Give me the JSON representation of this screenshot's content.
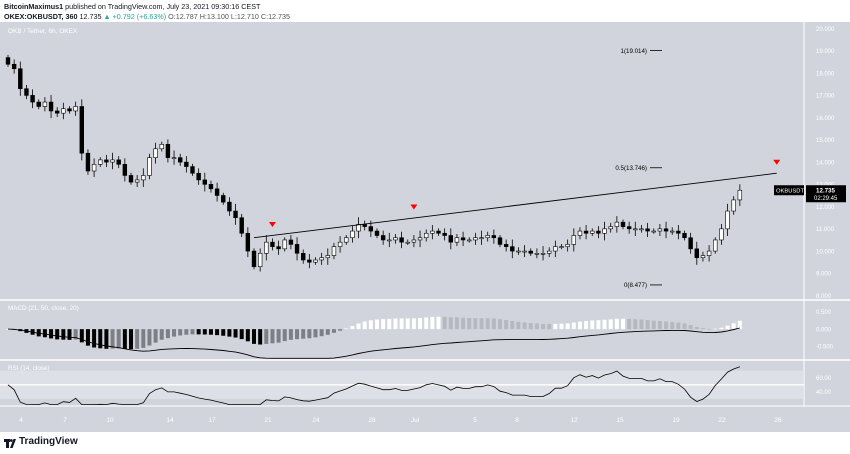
{
  "header": {
    "line1": {
      "author": "BitcoinMaximus1",
      "published": "published on TradingView.com, July 23, 2021 09:30:16 CEST"
    },
    "line2": {
      "symbol": "OKEX:OKBUSDT, 360",
      "last": "12.735",
      "change": "▲ +0.792 (+6.63%)",
      "open": "O:12.787",
      "high": "H:13.100",
      "low": "L:12.710",
      "close": "C:12.735"
    }
  },
  "pane_title": "OKB / Tether, 6h, OKEX",
  "indicator_titles": {
    "macd": "MACD (21, 50, close, 20)",
    "rsi": "RSI (14, close)"
  },
  "price_badge": {
    "ticker": "OKBUSDT",
    "price": "12.735",
    "countdown": "02:29:45"
  },
  "fib_labels": [
    "1(19.014)",
    "0.5(13.746)",
    "0(8.477)"
  ],
  "footer": {
    "brand": "TradingView"
  },
  "colors": {
    "chart_bg": "#d1d4dc",
    "candle_up": "#ffffff",
    "candle_down": "#000000",
    "line": "#000000",
    "marker": "#ff0000",
    "badge_bg": "#000000",
    "axis_text": "#ffffff"
  },
  "chart_data": [
    {
      "type": "candlestick",
      "title": "OKB / Tether, 6h, OKEX",
      "x_ticks": [
        "4",
        "7",
        "10",
        "14",
        "17",
        "21",
        "24",
        "28",
        "Jul",
        "5",
        "8",
        "12",
        "15",
        "19",
        "22",
        "26"
      ],
      "y_ticks": [
        "8.000",
        "9.000",
        "10.000",
        "11.000",
        "12.000",
        "13.000",
        "14.000",
        "15.000",
        "16.000",
        "17.000",
        "18.000",
        "19.000",
        "20.000"
      ],
      "ylim": [
        7.8,
        20.3
      ],
      "close_series": [
        18.4,
        18.2,
        17.3,
        17.0,
        16.7,
        16.5,
        16.7,
        16.3,
        16.2,
        16.4,
        16.3,
        16.5,
        14.4,
        13.6,
        13.9,
        14.1,
        14.0,
        14.1,
        13.9,
        13.4,
        13.1,
        13.2,
        13.4,
        14.2,
        14.6,
        14.8,
        14.2,
        14.2,
        14.0,
        13.8,
        13.5,
        13.2,
        13.0,
        12.8,
        12.5,
        12.2,
        11.8,
        11.5,
        10.8,
        10.0,
        9.3,
        9.9,
        10.4,
        10.2,
        10.1,
        10.5,
        10.3,
        9.9,
        9.6,
        9.5,
        9.6,
        9.7,
        9.8,
        10.2,
        10.4,
        10.6,
        10.9,
        11.2,
        11.1,
        10.9,
        10.7,
        10.5,
        10.5,
        10.6,
        10.4,
        10.4,
        10.5,
        10.6,
        10.8,
        10.9,
        10.8,
        10.7,
        10.4,
        10.6,
        10.5,
        10.5,
        10.6,
        10.6,
        10.7,
        10.6,
        10.3,
        10.2,
        10.0,
        10.0,
        10.0,
        9.9,
        9.9,
        9.9,
        10.0,
        10.2,
        10.2,
        10.3,
        10.7,
        10.9,
        10.8,
        10.9,
        10.8,
        11.0,
        11.1,
        11.3,
        11.1,
        11.0,
        11.0,
        11.0,
        10.9,
        10.9,
        11.0,
        10.9,
        10.9,
        10.8,
        10.6,
        10.1,
        9.7,
        9.8,
        10.0,
        10.5,
        11.0,
        11.8,
        12.3,
        12.735
      ],
      "highlighted_values": {
        "last": 12.735,
        "open": 12.787,
        "high": 13.1,
        "low": 12.71
      },
      "fib_levels": [
        {
          "ratio": 1,
          "value": 19.014
        },
        {
          "ratio": 0.5,
          "value": 13.746
        },
        {
          "ratio": 0,
          "value": 8.477
        }
      ],
      "trendline": [
        {
          "bar": 40,
          "value": 10.6
        },
        {
          "bar": 125,
          "value": 13.5
        }
      ],
      "resistance_touches_bars": [
        43,
        66,
        125
      ]
    },
    {
      "type": "bar",
      "title": "MACD (21, 50, close, 20)",
      "y_ticks": [
        "0.500",
        "0.000",
        "-0.500"
      ],
      "ylim": [
        -0.9,
        0.85
      ]
    },
    {
      "type": "line",
      "title": "RSI (14, close)",
      "y_ticks": [
        "60.00",
        "40.00"
      ],
      "ylim": [
        20,
        85
      ],
      "bands": [
        30,
        70
      ]
    }
  ]
}
